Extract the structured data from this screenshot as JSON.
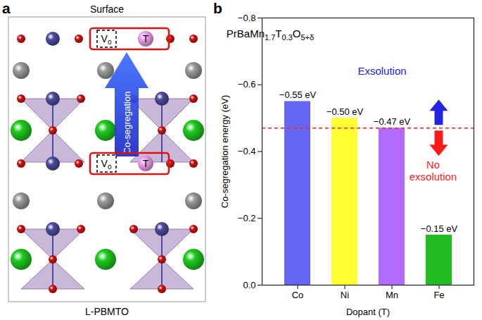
{
  "diagram": {
    "panel_label": "a",
    "top_label": "Surface",
    "bottom_label": "L-PBMTO",
    "arrow_label": "Co-segregation",
    "vacancy_label": {
      "text": "V",
      "sub": "o"
    },
    "dopant_label": "T"
  },
  "chart_data": {
    "panel_label": "b",
    "type": "bar",
    "title": [
      {
        "text": "PrBaMn"
      },
      {
        "text": "1.7",
        "sub": true
      },
      {
        "text": "T"
      },
      {
        "text": "0.3",
        "sub": true
      },
      {
        "text": "O"
      },
      {
        "text": "5+δ",
        "sub": true
      }
    ],
    "xlabel": "Dopant (T)",
    "ylabel": "Co-segregation energy (eV)",
    "categories": [
      "Co",
      "Ni",
      "Mn",
      "Fe"
    ],
    "values": [
      -0.55,
      -0.5,
      -0.47,
      -0.15
    ],
    "value_labels": [
      "−0.55 eV",
      "−0.50 eV",
      "−0.47 eV",
      "−0.15 eV"
    ],
    "colors": [
      "#6666f5",
      "#ffff33",
      "#b36bff",
      "#22bb22"
    ],
    "data_labels": true,
    "ylim": [
      0,
      -0.8
    ],
    "yticks": [
      {
        "value": 0,
        "label": "0.0"
      },
      {
        "value": -0.2,
        "label": "−0.2"
      },
      {
        "value": -0.4,
        "label": "−0.4"
      },
      {
        "value": -0.6,
        "label": "−0.6"
      },
      {
        "value": -0.8,
        "label": "−0.8"
      }
    ],
    "grid": false,
    "threshold": {
      "value": -0.47,
      "color": "#ff2020",
      "line_style": "dashed"
    },
    "annotations": [
      {
        "text": [
          "Exsolution"
        ],
        "color": "#2323e0"
      },
      {
        "text": [
          "No",
          "exsolution"
        ],
        "color": "#ff1a1a"
      }
    ]
  }
}
